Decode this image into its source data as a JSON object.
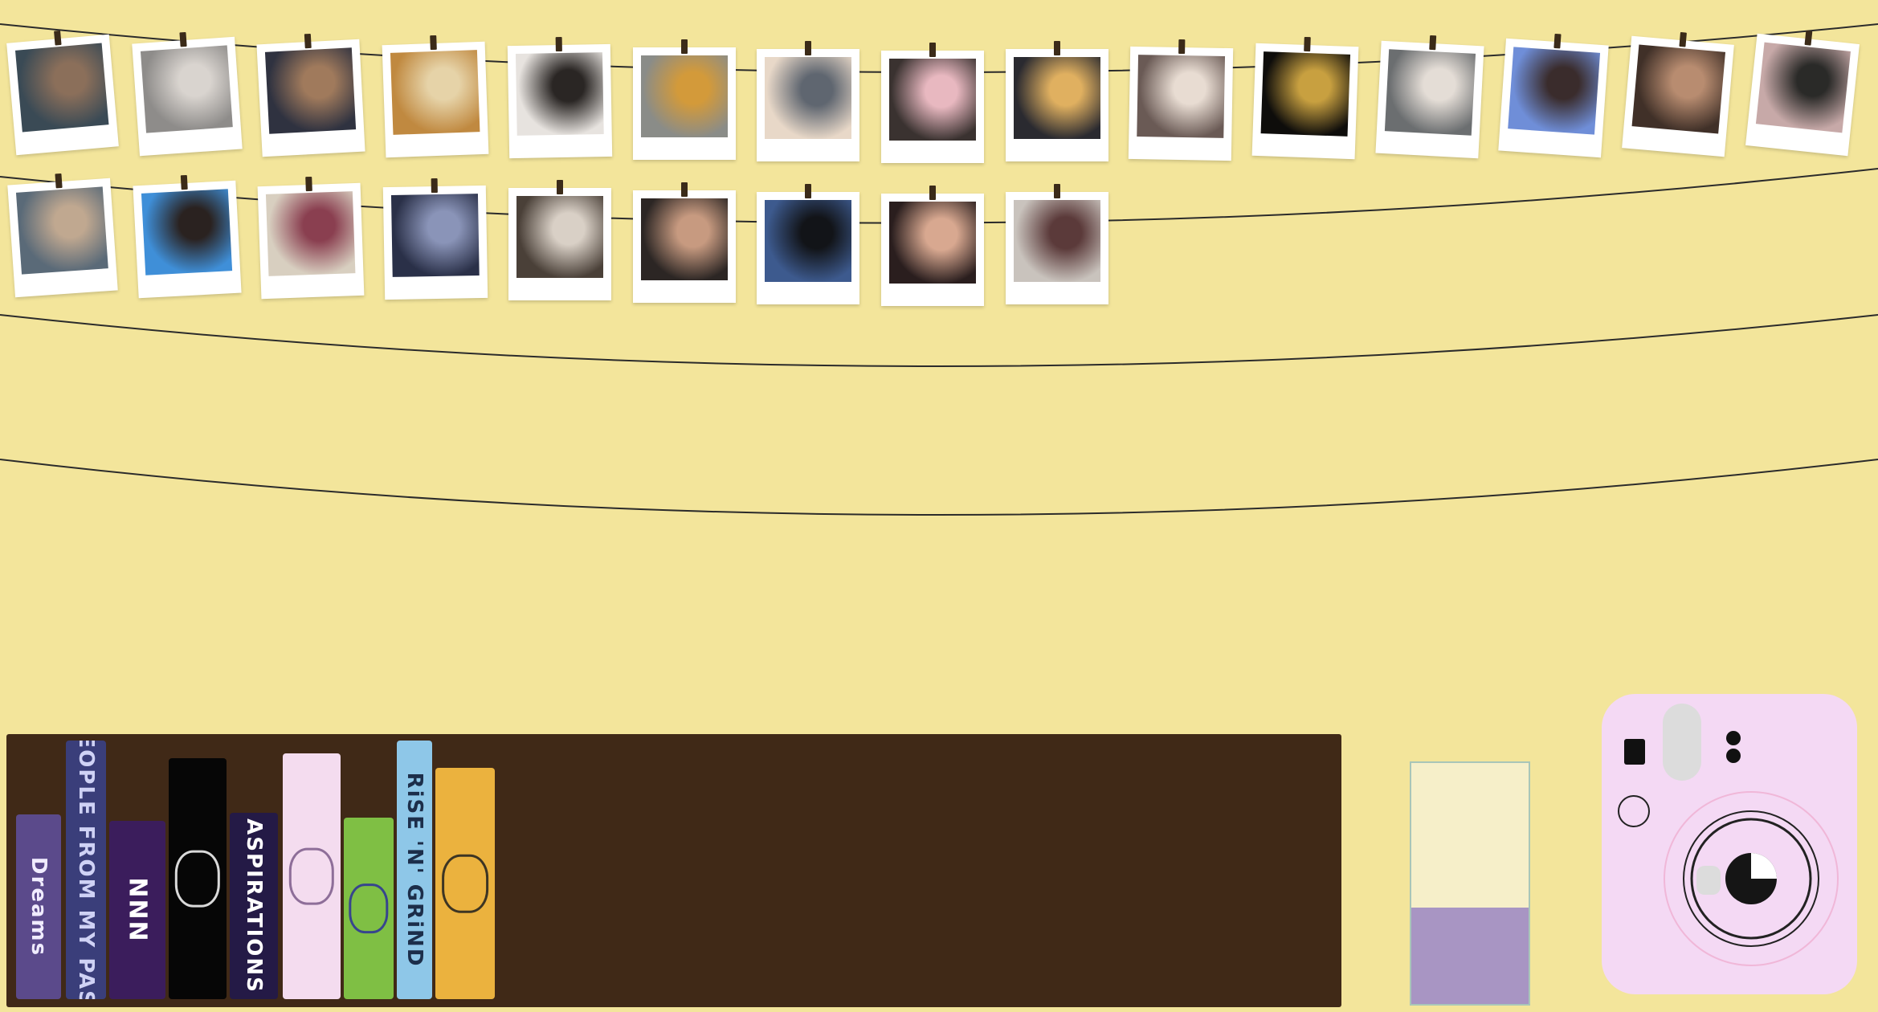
{
  "scene": {
    "background_color": "#f3e59b",
    "string_color": "#2b2b2b"
  },
  "photo_strings": {
    "row1": {
      "photos": [
        {
          "subject": "group selfie of friends",
          "colors": [
            "#3a4a55",
            "#8b6f5a"
          ]
        },
        {
          "subject": "grey tabby cat",
          "colors": [
            "#8e8c8a",
            "#d9d4cf"
          ]
        },
        {
          "subject": "two friends at a restaurant",
          "colors": [
            "#2f3240",
            "#a07a5c"
          ]
        },
        {
          "subject": "burger",
          "colors": [
            "#c08940",
            "#e6d3a8"
          ]
        },
        {
          "subject": "two friends in white tees",
          "colors": [
            "#e7e3df",
            "#2a2624"
          ]
        },
        {
          "subject": "rainbow over autumn trees",
          "colors": [
            "#8a8c88",
            "#d39a3a"
          ]
        },
        {
          "subject": "white cat close-up",
          "colors": [
            "#e8d8c8",
            "#5f6670"
          ]
        },
        {
          "subject": "two friends dressed up",
          "colors": [
            "#3a3230",
            "#e8b8c0"
          ]
        },
        {
          "subject": "laptop and iced drink",
          "colors": [
            "#2a2a30",
            "#e0b060"
          ]
        },
        {
          "subject": "two friends in sunglasses",
          "colors": [
            "#6a5a55",
            "#e8dcd2"
          ]
        },
        {
          "subject": "fireworks at night",
          "colors": [
            "#0e0d0b",
            "#c8a040"
          ]
        },
        {
          "subject": "two friends selfie",
          "colors": [
            "#6b6e70",
            "#e4ddd6"
          ]
        },
        {
          "subject": "friend against blue sky",
          "colors": [
            "#6f8ed8",
            "#3a2c2c"
          ]
        },
        {
          "subject": "group of friends indoors",
          "colors": [
            "#403028",
            "#b88c70"
          ]
        },
        {
          "subject": "sunset over trees",
          "colors": [
            "#c7a9a8",
            "#2a2a28"
          ]
        }
      ]
    },
    "row2": {
      "photos": [
        {
          "subject": "group of friends outdoors",
          "colors": [
            "#5a6a78",
            "#c0a890"
          ]
        },
        {
          "subject": "friend in blue hijab",
          "colors": [
            "#3f8fd8",
            "#2a2220"
          ]
        },
        {
          "subject": "bowls on a table",
          "colors": [
            "#d8cfc0",
            "#8a3f50"
          ]
        },
        {
          "subject": "friend at night in city",
          "colors": [
            "#2a3048",
            "#8a94b8"
          ]
        },
        {
          "subject": "two friends on a couch",
          "colors": [
            "#4a4038",
            "#d9d0c6"
          ]
        },
        {
          "subject": "two friends surprised selfie",
          "colors": [
            "#2c2624",
            "#c79a80"
          ]
        },
        {
          "subject": "car dashboard at dusk",
          "colors": [
            "#3d5a8e",
            "#121418"
          ]
        },
        {
          "subject": "two friends smiling",
          "colors": [
            "#2a1e1e",
            "#d8a890"
          ]
        },
        {
          "subject": "person holding a cat",
          "colors": [
            "#c9c3bd",
            "#5b3a3a"
          ]
        }
      ]
    }
  },
  "bookshelf": {
    "color": "#402917",
    "books": [
      {
        "title": "Dreams",
        "bg": "#5b4a8b",
        "fg": "#f0ecff"
      },
      {
        "title": "PEOPLE FROM MY PAST",
        "bg": "#3a3e7a",
        "fg": "#cfd2f5"
      },
      {
        "title": "NNN",
        "bg": "#3b1d5c",
        "fg": "#ffffff"
      },
      {
        "title": "",
        "bg": "#060606",
        "fg": "#ffffff",
        "icon": "astronaut-icon"
      },
      {
        "title": "ASPIRATIONS",
        "bg": "#241a46",
        "fg": "#ffffff"
      },
      {
        "title": "",
        "bg": "#f4dcef",
        "fg": "#7b5a8a",
        "icon": "clouds-icon"
      },
      {
        "title": "",
        "bg": "#7fbf44",
        "fg": "#2a2f9a",
        "icon": "swirl-icon"
      },
      {
        "title": "RiSE 'N' GRiND",
        "bg": "#8ec7e8",
        "fg": "#1c2e4a"
      },
      {
        "title": "",
        "bg": "#ebb23e",
        "fg": "#1f1f1f",
        "icon": "collage-icon"
      }
    ]
  },
  "glass": {
    "fill_level": 0.4,
    "fill_color": "#a895c3"
  },
  "camera": {
    "body_color": "#f4d9f4",
    "lens_color": "#151515"
  }
}
